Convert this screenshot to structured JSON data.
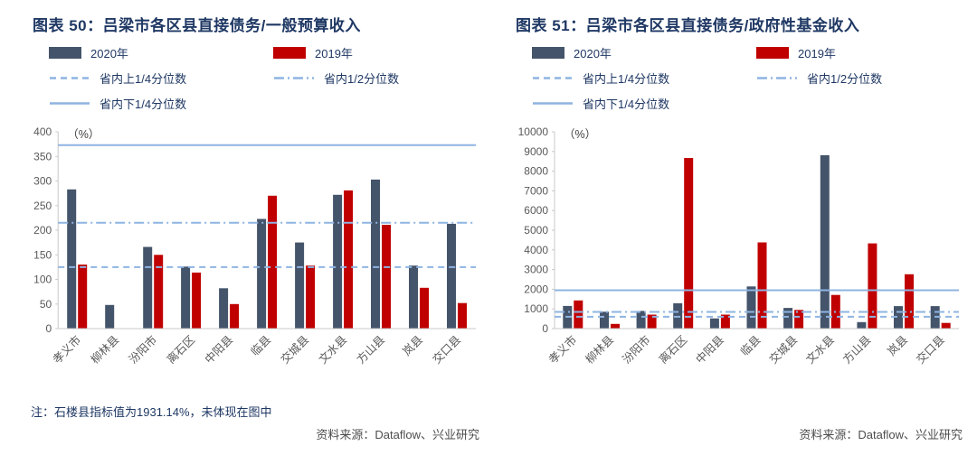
{
  "chart_data": [
    {
      "type": "bar",
      "title": "图表 50：吕梁市各区县直接债务/一般预算收入",
      "unit_label": "（%）",
      "categories": [
        "孝义市",
        "柳林县",
        "汾阳市",
        "离石区",
        "中阳县",
        "临县",
        "交城县",
        "文水县",
        "方山县",
        "岚县",
        "交口县"
      ],
      "series": [
        {
          "name": "2020年",
          "color": "#44546A",
          "values": [
            283,
            48,
            166,
            126,
            82,
            223,
            175,
            272,
            303,
            128,
            213
          ]
        },
        {
          "name": "2019年",
          "color": "#C00000",
          "values": [
            130,
            null,
            150,
            114,
            50,
            270,
            128,
            281,
            211,
            83,
            52
          ]
        }
      ],
      "ref_lines": [
        {
          "name": "省内上1/4分位数",
          "style": "dashed",
          "value": 125
        },
        {
          "name": "省内1/2分位数",
          "style": "dashdot",
          "value": 215
        },
        {
          "name": "省内下1/4分位数",
          "style": "solid",
          "value": 373
        }
      ],
      "ref_color": "#8EB4E2",
      "ylim": [
        0,
        400
      ],
      "ytick_step": 50,
      "legend_position": "top",
      "grid": false
    },
    {
      "type": "bar",
      "title": "图表 51：吕梁市各区县直接债务/政府性基金收入",
      "unit_label": "（%）",
      "categories": [
        "孝义市",
        "柳林县",
        "汾阳市",
        "离石区",
        "中阳县",
        "临县",
        "交城县",
        "文水县",
        "方山县",
        "岚县",
        "交口县"
      ],
      "series": [
        {
          "name": "2020年",
          "color": "#44546A",
          "values": [
            1150,
            860,
            900,
            1290,
            520,
            2140,
            1050,
            8810,
            330,
            1140,
            1140
          ]
        },
        {
          "name": "2019年",
          "color": "#C00000",
          "values": [
            1430,
            240,
            710,
            8670,
            710,
            4380,
            950,
            1710,
            4330,
            2760,
            290
          ]
        }
      ],
      "ref_lines": [
        {
          "name": "省内上1/4分位数",
          "style": "dashed",
          "value": 600
        },
        {
          "name": "省内1/2分位数",
          "style": "dashdot",
          "value": 850
        },
        {
          "name": "省内下1/4分位数",
          "style": "solid",
          "value": 1950
        }
      ],
      "ref_color": "#8EB4E2",
      "ylim": [
        0,
        10000
      ],
      "ytick_step": 1000,
      "legend_position": "top",
      "grid": false
    }
  ],
  "panels": [
    {
      "note": "注：石楼县指标值为1931.14%，未体现在图中",
      "source": "资料来源：Dataflow、兴业研究"
    },
    {
      "note": "",
      "source": "资料来源：Dataflow、兴业研究"
    }
  ],
  "colors": {
    "title_text": "#1F3864",
    "note_text": "#1F3864",
    "source_text": "#4d4d4d",
    "axis": "#C9C9C9",
    "series_2020": "#44546A",
    "series_2019": "#C00000",
    "quantile_line": "#8EB4E2"
  }
}
